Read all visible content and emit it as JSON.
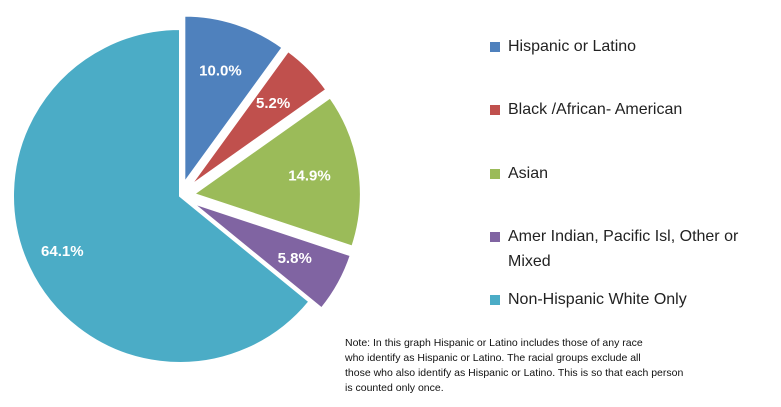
{
  "chart_data": {
    "type": "pie",
    "categories": [
      "Hispanic or Latino",
      "Black /African- American",
      "Asian",
      "Amer Indian, Pacific Isl, Other or Mixed",
      "Non-Hispanic White Only"
    ],
    "values": [
      10.0,
      5.2,
      14.9,
      5.8,
      64.1
    ],
    "value_labels": [
      "10.0%",
      "5.2%",
      "14.9%",
      "5.8%",
      "64.1%"
    ],
    "colors": [
      "#4f81bd",
      "#c0504d",
      "#9bbb59",
      "#8064a2",
      "#4bacc6"
    ],
    "legend": "right",
    "note": [
      "Note:  In this graph Hispanic or Latino includes those of any race",
      "who identify as Hispanic or Latino.  The racial groups exclude all",
      "those who also identify as Hispanic or Latino.  This is so that each person",
      "is counted only once."
    ]
  }
}
